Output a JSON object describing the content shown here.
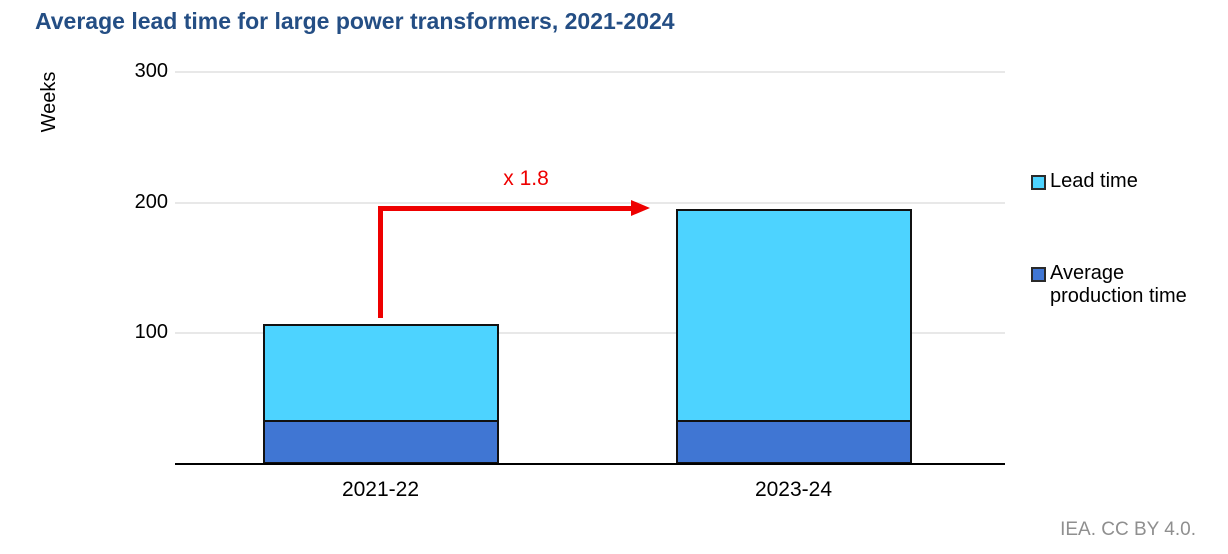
{
  "page": {
    "title": "Average lead time for large power transformers, 2021-2024",
    "attribution": "IEA. CC BY 4.0."
  },
  "colors": {
    "title_blue": "#244E84",
    "lead_time": "#4DD3FF",
    "production_time": "#4076D3",
    "annotation_red": "#EE0000",
    "gridline": "#E8E8E8",
    "axis": "#000000",
    "bar_border": "#111111",
    "attribution_gray": "#8F8F8F"
  },
  "legend": {
    "items": [
      {
        "label": "Lead time",
        "color": "#4DD3FF"
      },
      {
        "label": "Average\nproduction time",
        "color": "#4076D3"
      }
    ]
  },
  "chart_data": {
    "type": "bar",
    "stacked": true,
    "title": "Average lead time for large power transformers, 2021-2024",
    "xlabel": "",
    "ylabel": "Weeks",
    "categories": [
      "2021-22",
      "2023-24"
    ],
    "series": [
      {
        "name": "Average production time",
        "color": "#4076D3",
        "values": [
          32,
          32
        ]
      },
      {
        "name": "Lead time",
        "color": "#4DD3FF",
        "values": [
          75,
          163
        ]
      }
    ],
    "bar_totals": [
      107,
      195
    ],
    "ylim": [
      0,
      300
    ],
    "yticks": [
      100,
      200,
      300
    ],
    "grid": "horizontal",
    "legend_position": "right",
    "annotation": {
      "text": "x 1.8",
      "from_category": "2021-22",
      "to_category": "2023-24",
      "color": "#EE0000"
    }
  }
}
